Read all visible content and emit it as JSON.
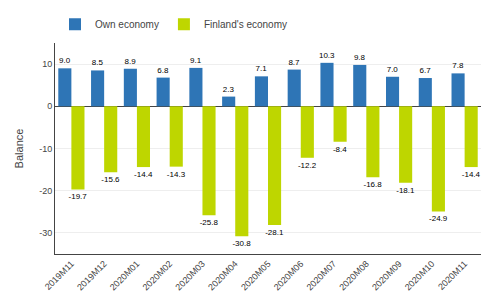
{
  "chart_data": {
    "type": "bar",
    "categories": [
      "2019M11",
      "2019M12",
      "2020M01",
      "2020M02",
      "2020M03",
      "2020M04",
      "2020M05",
      "2020M06",
      "2020M07",
      "2020M08",
      "2020M09",
      "2020M10",
      "2020M11"
    ],
    "series": [
      {
        "name": "Own economy",
        "color": "#2e75b6",
        "values": [
          9.0,
          8.5,
          8.9,
          6.8,
          9.1,
          2.3,
          7.1,
          8.7,
          10.3,
          9.8,
          7.0,
          6.7,
          7.8
        ],
        "value_labels": [
          "9.0",
          "8.5",
          "8.9",
          "6.8",
          "9.1",
          "2.3",
          "7.1",
          "8.7",
          "10.3",
          "9.8",
          "7.0",
          "6.7",
          "7.8"
        ]
      },
      {
        "name": "Finland's economy",
        "color": "#bed600",
        "values": [
          -19.7,
          -15.6,
          -14.4,
          -14.3,
          -25.8,
          -30.8,
          -28.1,
          -12.2,
          -8.4,
          -16.8,
          -18.1,
          -24.9,
          -14.4
        ],
        "value_labels": [
          "-19.7",
          "-15.6",
          "-14.4",
          "-14.3",
          "-25.8",
          "-30.8",
          "-28.1",
          "-12.2",
          "-8.4",
          "-16.8",
          "-18.1",
          "-24.9",
          "-14.4"
        ]
      }
    ],
    "ylabel": "Balance",
    "ylim": [
      -35,
      15
    ],
    "yticks": [
      -30,
      -20,
      -10,
      0,
      10
    ],
    "grid": true,
    "legend": "upper left",
    "data_labels": true
  }
}
